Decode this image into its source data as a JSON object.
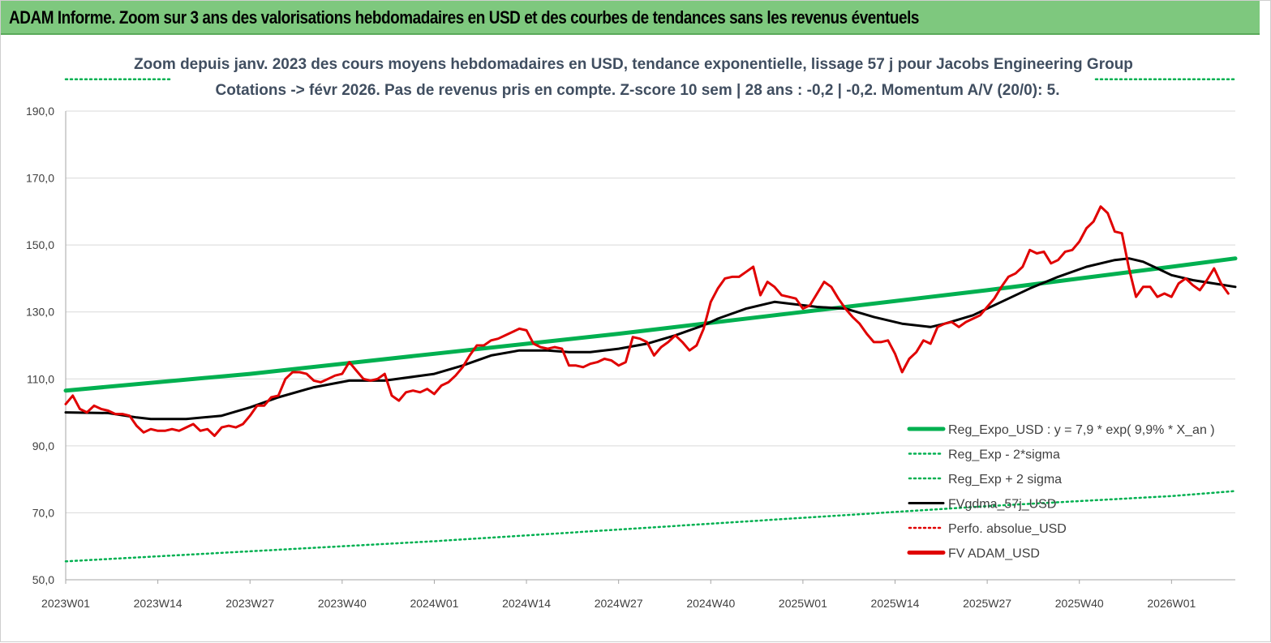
{
  "banner": {
    "title": "ADAM Informe. Zoom sur 3 ans des valorisations hebdomadaires en USD et des courbes de tendances sans les revenus éventuels"
  },
  "chart_data": {
    "type": "line",
    "subtitle_line1": "Zoom depuis janv. 2023 des cours moyens hebdomadaires en USD, tendance exponentielle, lissage 57 j pour Jacobs Engineering Group",
    "subtitle_line2": "Cotations -> févr 2026.  Pas de revenus pris en compte. Z-score 10 sem | 28 ans : -0,2 | -0,2. Momentum A/V (20/0): 5.",
    "x_tick_labels": [
      "2023W01",
      "2023W14",
      "2023W27",
      "2023W40",
      "2024W01",
      "2024W14",
      "2024W27",
      "2024W40",
      "2025W01",
      "2025W14",
      "2025W27",
      "2025W40",
      "2026W01"
    ],
    "y_tick_labels": [
      "50,0",
      "70,0",
      "90,0",
      "110,0",
      "130,0",
      "150,0",
      "170,0",
      "190,0"
    ],
    "ylim": [
      50,
      190
    ],
    "x_range_weeks": [
      0,
      165
    ],
    "grid": "horizontal",
    "legend_position": "bottom-right",
    "legend": [
      {
        "label": "Reg_Expo_USD : y = 7,9 * exp( 9,9% *  X_an )",
        "color": "#00b050",
        "style": "solid-thick"
      },
      {
        "label": "Reg_Exp - 2*sigma",
        "color": "#00b050",
        "style": "dotted"
      },
      {
        "label": "Reg_Exp + 2 sigma",
        "color": "#00b050",
        "style": "dotted"
      },
      {
        "label": "FVgdma_57j_USD",
        "color": "#000000",
        "style": "solid"
      },
      {
        "label": "Perfo. absolue_USD",
        "color": "#e00000",
        "style": "dotted"
      },
      {
        "label": "FV ADAM_USD",
        "color": "#e00000",
        "style": "solid-thick"
      }
    ],
    "series": [
      {
        "name": "Reg_Expo_USD : y = 7,9 * exp( 9,9% *  X_an )",
        "color": "#00b050",
        "points": [
          [
            0,
            106.5
          ],
          [
            26,
            111.5
          ],
          [
            52,
            117.5
          ],
          [
            78,
            123.5
          ],
          [
            104,
            130
          ],
          [
            130,
            136.5
          ],
          [
            156,
            143.5
          ],
          [
            165,
            146
          ]
        ]
      },
      {
        "name": "Reg_Exp - 2*sigma",
        "color": "#00b050",
        "points": [
          [
            0,
            55.5
          ],
          [
            26,
            58.5
          ],
          [
            52,
            61.5
          ],
          [
            78,
            65
          ],
          [
            104,
            68.5
          ],
          [
            130,
            72
          ],
          [
            156,
            75
          ],
          [
            165,
            76.5
          ]
        ]
      },
      {
        "name": "Reg_Exp + 2 sigma",
        "color": "#00b050",
        "points": [
          [
            0,
            199.5
          ],
          [
            15,
            199.5
          ]
        ]
      },
      {
        "name": "FVgdma_57j_USD",
        "color": "#000000",
        "points": [
          [
            0,
            100
          ],
          [
            6,
            99.8
          ],
          [
            10,
            98.5
          ],
          [
            12,
            98
          ],
          [
            17,
            98
          ],
          [
            22,
            99
          ],
          [
            26,
            101.5
          ],
          [
            30,
            104.5
          ],
          [
            35,
            107.5
          ],
          [
            40,
            109.5
          ],
          [
            45,
            109.5
          ],
          [
            52,
            111.5
          ],
          [
            56,
            114
          ],
          [
            60,
            117
          ],
          [
            64,
            118.5
          ],
          [
            68,
            118.5
          ],
          [
            71,
            118
          ],
          [
            74,
            118
          ],
          [
            78,
            119
          ],
          [
            82,
            120.5
          ],
          [
            86,
            123
          ],
          [
            90,
            126
          ],
          [
            92,
            128
          ],
          [
            96,
            131
          ],
          [
            100,
            133
          ],
          [
            102,
            132.5
          ],
          [
            106,
            131.5
          ],
          [
            110,
            131
          ],
          [
            114,
            128.5
          ],
          [
            118,
            126.5
          ],
          [
            122,
            125.5
          ],
          [
            124,
            126.5
          ],
          [
            128,
            129
          ],
          [
            132,
            133
          ],
          [
            136,
            137
          ],
          [
            140,
            140.5
          ],
          [
            144,
            143.5
          ],
          [
            148,
            145.5
          ],
          [
            150,
            146
          ],
          [
            152,
            145
          ],
          [
            154,
            143
          ],
          [
            156,
            141
          ],
          [
            159,
            139.5
          ],
          [
            162,
            138.5
          ],
          [
            165,
            137.5
          ]
        ]
      },
      {
        "name": "FV ADAM_USD",
        "color": "#e00000",
        "points": [
          [
            0,
            102.5
          ],
          [
            1,
            105
          ],
          [
            2,
            101
          ],
          [
            3,
            100
          ],
          [
            4,
            102
          ],
          [
            5,
            101
          ],
          [
            6,
            100.5
          ],
          [
            7,
            99.5
          ],
          [
            8,
            99.5
          ],
          [
            9,
            99
          ],
          [
            10,
            96
          ],
          [
            11,
            94
          ],
          [
            12,
            95
          ],
          [
            13,
            94.5
          ],
          [
            14,
            94.5
          ],
          [
            15,
            95
          ],
          [
            16,
            94.5
          ],
          [
            17,
            95.5
          ],
          [
            18,
            96.5
          ],
          [
            19,
            94.5
          ],
          [
            20,
            95
          ],
          [
            21,
            93
          ],
          [
            22,
            95.5
          ],
          [
            23,
            96
          ],
          [
            24,
            95.5
          ],
          [
            25,
            96.5
          ],
          [
            26,
            99
          ],
          [
            27,
            102
          ],
          [
            28,
            102
          ],
          [
            29,
            104.5
          ],
          [
            30,
            105
          ],
          [
            31,
            110
          ],
          [
            32,
            112
          ],
          [
            33,
            112
          ],
          [
            34,
            111.5
          ],
          [
            35,
            109.5
          ],
          [
            36,
            109
          ],
          [
            37,
            110
          ],
          [
            38,
            111
          ],
          [
            39,
            111.5
          ],
          [
            40,
            115
          ],
          [
            41,
            112.5
          ],
          [
            42,
            110
          ],
          [
            43,
            109.5
          ],
          [
            44,
            110
          ],
          [
            45,
            111.5
          ],
          [
            46,
            105
          ],
          [
            47,
            103.5
          ],
          [
            48,
            106
          ],
          [
            49,
            106.5
          ],
          [
            50,
            106
          ],
          [
            51,
            107
          ],
          [
            52,
            105.5
          ],
          [
            53,
            108
          ],
          [
            54,
            109
          ],
          [
            55,
            111
          ],
          [
            56,
            113.5
          ],
          [
            57,
            117
          ],
          [
            58,
            120
          ],
          [
            59,
            120
          ],
          [
            60,
            121.5
          ],
          [
            61,
            122
          ],
          [
            62,
            123
          ],
          [
            63,
            124
          ],
          [
            64,
            125
          ],
          [
            65,
            124.5
          ],
          [
            66,
            120.5
          ],
          [
            67,
            119.5
          ],
          [
            68,
            119
          ],
          [
            69,
            119.5
          ],
          [
            70,
            119
          ],
          [
            71,
            114
          ],
          [
            72,
            114
          ],
          [
            73,
            113.5
          ],
          [
            74,
            114.5
          ],
          [
            75,
            115
          ],
          [
            76,
            116
          ],
          [
            77,
            115.5
          ],
          [
            78,
            114
          ],
          [
            79,
            115
          ],
          [
            80,
            122.5
          ],
          [
            81,
            122
          ],
          [
            82,
            121
          ],
          [
            83,
            117
          ],
          [
            84,
            119.5
          ],
          [
            85,
            121
          ],
          [
            86,
            123
          ],
          [
            87,
            121
          ],
          [
            88,
            118.5
          ],
          [
            89,
            120
          ],
          [
            90,
            125
          ],
          [
            91,
            133
          ],
          [
            92,
            137
          ],
          [
            93,
            140
          ],
          [
            94,
            140.5
          ],
          [
            95,
            140.5
          ],
          [
            96,
            142
          ],
          [
            97,
            143.5
          ],
          [
            98,
            135
          ],
          [
            99,
            139
          ],
          [
            100,
            137.5
          ],
          [
            101,
            135
          ],
          [
            102,
            134.5
          ],
          [
            103,
            134
          ],
          [
            104,
            131
          ],
          [
            105,
            132
          ],
          [
            106,
            135.5
          ],
          [
            107,
            139
          ],
          [
            108,
            137.5
          ],
          [
            109,
            134
          ],
          [
            110,
            131
          ],
          [
            111,
            128.5
          ],
          [
            112,
            126.5
          ],
          [
            113,
            123.5
          ],
          [
            114,
            121
          ],
          [
            115,
            121
          ],
          [
            116,
            121.5
          ],
          [
            117,
            117.5
          ],
          [
            118,
            112
          ],
          [
            119,
            116
          ],
          [
            120,
            118
          ],
          [
            121,
            121.5
          ],
          [
            122,
            120.5
          ],
          [
            123,
            125.5
          ],
          [
            124,
            126.5
          ],
          [
            125,
            127
          ],
          [
            126,
            125.5
          ],
          [
            127,
            127
          ],
          [
            128,
            128
          ],
          [
            129,
            129
          ],
          [
            130,
            131.5
          ],
          [
            131,
            134
          ],
          [
            132,
            137.5
          ],
          [
            133,
            140.5
          ],
          [
            134,
            141.5
          ],
          [
            135,
            143.5
          ],
          [
            136,
            148.5
          ],
          [
            137,
            147.5
          ],
          [
            138,
            148
          ],
          [
            139,
            144.5
          ],
          [
            140,
            145.5
          ],
          [
            141,
            148
          ],
          [
            142,
            148.5
          ],
          [
            143,
            151
          ],
          [
            144,
            155
          ],
          [
            145,
            157
          ],
          [
            146,
            161.5
          ],
          [
            147,
            159.5
          ],
          [
            148,
            154
          ],
          [
            149,
            153.5
          ],
          [
            150,
            143
          ],
          [
            151,
            134.5
          ],
          [
            152,
            137.5
          ],
          [
            153,
            137.5
          ],
          [
            154,
            134.5
          ],
          [
            155,
            135.5
          ],
          [
            156,
            134.5
          ],
          [
            157,
            138.5
          ],
          [
            158,
            140
          ],
          [
            159,
            138
          ],
          [
            160,
            136.5
          ],
          [
            161,
            139.5
          ],
          [
            162,
            143
          ],
          [
            163,
            138.5
          ],
          [
            164,
            135.5
          ]
        ]
      }
    ]
  }
}
